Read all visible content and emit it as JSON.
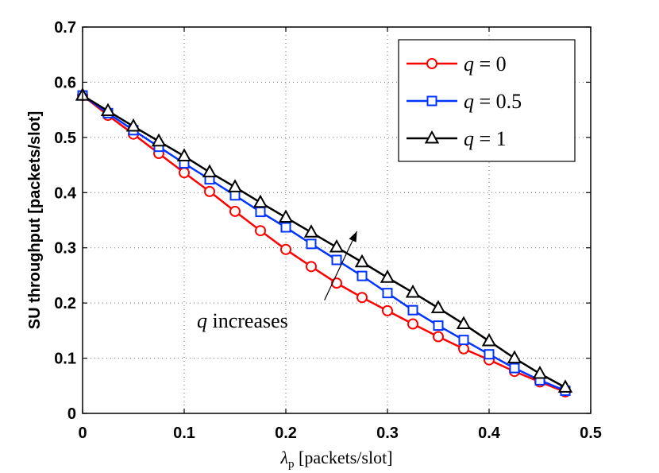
{
  "chart_data": {
    "type": "line",
    "xlabel": "λp [packets/slot]",
    "ylabel": "SU throughput [packets/slot]",
    "xlim": [
      0,
      0.5
    ],
    "ylim": [
      0,
      0.7
    ],
    "xticks": [
      0,
      0.1,
      0.2,
      0.3,
      0.4,
      0.5
    ],
    "yticks": [
      0,
      0.1,
      0.2,
      0.3,
      0.4,
      0.5,
      0.6,
      0.7
    ],
    "xtick_labels": [
      "0",
      "0.1",
      "0.2",
      "0.3",
      "0.4",
      "0.5"
    ],
    "ytick_labels": [
      "0",
      "0.1",
      "0.2",
      "0.3",
      "0.4",
      "0.5",
      "0.6",
      "0.7"
    ],
    "grid": true,
    "legend_position": "top-right",
    "x": [
      0,
      0.025,
      0.05,
      0.075,
      0.1,
      0.125,
      0.15,
      0.175,
      0.2,
      0.225,
      0.25,
      0.275,
      0.3,
      0.325,
      0.35,
      0.375,
      0.4,
      0.425,
      0.45,
      0.475
    ],
    "series": [
      {
        "name": "q = 0",
        "color": "#ff0000",
        "marker": "circle",
        "values": [
          0.576,
          0.54,
          0.506,
          0.471,
          0.436,
          0.402,
          0.366,
          0.331,
          0.297,
          0.266,
          0.236,
          0.21,
          0.186,
          0.162,
          0.139,
          0.117,
          0.097,
          0.076,
          0.057,
          0.039
        ]
      },
      {
        "name": "q = 0.5",
        "color": "#0033ff",
        "marker": "square",
        "values": [
          0.576,
          0.544,
          0.513,
          0.483,
          0.453,
          0.424,
          0.395,
          0.365,
          0.337,
          0.307,
          0.278,
          0.249,
          0.218,
          0.187,
          0.159,
          0.133,
          0.107,
          0.082,
          0.06,
          0.041
        ]
      },
      {
        "name": "q = 1",
        "color": "#000000",
        "marker": "triangle",
        "values": [
          0.576,
          0.548,
          0.52,
          0.493,
          0.466,
          0.437,
          0.41,
          0.382,
          0.355,
          0.328,
          0.301,
          0.274,
          0.246,
          0.219,
          0.191,
          0.162,
          0.131,
          0.1,
          0.072,
          0.047
        ]
      }
    ],
    "annotation": {
      "text_var": "q",
      "text_rest": "increases",
      "arrow_from": [
        0.238,
        0.205
      ],
      "arrow_to": [
        0.27,
        0.33
      ]
    }
  }
}
